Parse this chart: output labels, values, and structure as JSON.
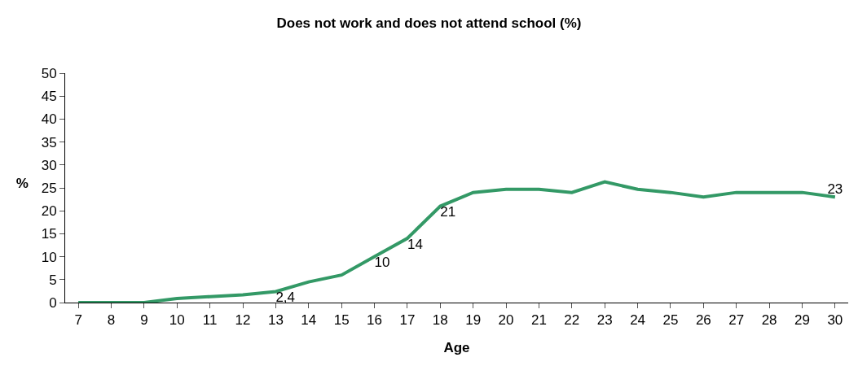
{
  "chart_data": {
    "type": "line",
    "title": "Does not work and does not attend school (%)",
    "xlabel": "Age",
    "ylabel": "%",
    "categories": [
      "7",
      "8",
      "9",
      "10",
      "11",
      "12",
      "13",
      "14",
      "15",
      "16",
      "17",
      "18",
      "19",
      "20",
      "21",
      "22",
      "23",
      "24",
      "25",
      "26",
      "27",
      "28",
      "29",
      "30"
    ],
    "series": [
      {
        "color": "#339966",
        "values": [
          0,
          0,
          0,
          0.9,
          1.3,
          1.7,
          2.4,
          4.5,
          6,
          10,
          14,
          21,
          24,
          24.7,
          24.7,
          24,
          26.3,
          24.7,
          24,
          23,
          24,
          24,
          24,
          23
        ],
        "value_labels": [
          null,
          null,
          null,
          null,
          null,
          null,
          "2,4",
          null,
          null,
          "10",
          "14",
          "21",
          null,
          null,
          null,
          null,
          null,
          null,
          null,
          null,
          null,
          null,
          null,
          "23"
        ]
      }
    ],
    "ylim": [
      0,
      50
    ],
    "yticks": [
      0,
      5,
      10,
      15,
      20,
      25,
      30,
      35,
      40,
      45,
      50
    ],
    "grid": false,
    "legend": false,
    "marker": "none",
    "line_style": "solid"
  }
}
